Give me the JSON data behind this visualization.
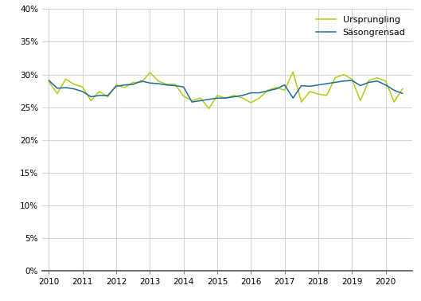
{
  "ursprungling_color": "#b5c916",
  "sasongrensad_color": "#1f6b9e",
  "background_color": "#ffffff",
  "grid_color": "#cccccc",
  "ylim": [
    0,
    0.4
  ],
  "yticks": [
    0,
    0.05,
    0.1,
    0.15,
    0.2,
    0.25,
    0.3,
    0.35,
    0.4
  ],
  "xtick_labels": [
    "2010",
    "2011",
    "2012",
    "2013",
    "2014",
    "2015",
    "2016",
    "2017",
    "2018",
    "2019",
    "2020"
  ],
  "legend_labels": [
    "Ursprungling",
    "Säsongrensad"
  ],
  "ursprungling": [
    0.289,
    0.271,
    0.293,
    0.285,
    0.281,
    0.26,
    0.274,
    0.266,
    0.284,
    0.28,
    0.288,
    0.288,
    0.303,
    0.29,
    0.285,
    0.285,
    0.267,
    0.26,
    0.264,
    0.248,
    0.268,
    0.264,
    0.268,
    0.264,
    0.257,
    0.264,
    0.276,
    0.28,
    0.276,
    0.304,
    0.258,
    0.274,
    0.27,
    0.268,
    0.295,
    0.3,
    0.293,
    0.26,
    0.291,
    0.295,
    0.29,
    0.258,
    0.278
  ],
  "sasongrensad": [
    0.291,
    0.279,
    0.28,
    0.278,
    0.274,
    0.266,
    0.268,
    0.268,
    0.282,
    0.284,
    0.285,
    0.29,
    0.287,
    0.286,
    0.284,
    0.283,
    0.281,
    0.258,
    0.26,
    0.262,
    0.264,
    0.264,
    0.266,
    0.268,
    0.272,
    0.272,
    0.275,
    0.278,
    0.284,
    0.264,
    0.283,
    0.282,
    0.284,
    0.286,
    0.288,
    0.29,
    0.291,
    0.283,
    0.288,
    0.29,
    0.284,
    0.276,
    0.271
  ],
  "figsize": [
    5.29,
    3.78
  ],
  "dpi": 100,
  "linewidth": 1.1,
  "tick_fontsize": 7.5,
  "legend_fontsize": 8,
  "xlim_left": 2009.8,
  "xlim_right": 2020.8
}
